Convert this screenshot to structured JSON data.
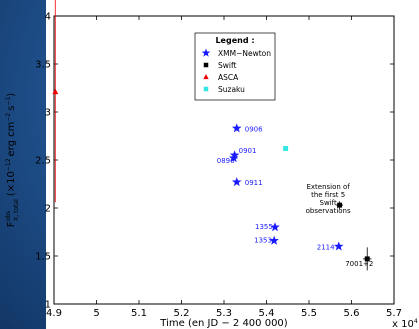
{
  "chart_data": {
    "type": "scatter",
    "xlabel": "Time (en JD − 2 400 000)",
    "x_multiplier_label": "x 10",
    "x_multiplier_exp": "4",
    "ylabel_main": "F",
    "ylabel_sup": "obs",
    "ylabel_sub": "X, total",
    "ylabel_rest": "(×10",
    "ylabel_exp": "−12",
    "ylabel_units": "erg cm",
    "ylabel_units_exp": "−2",
    "ylabel_units2": "s",
    "ylabel_units2_exp": "−1",
    "ylabel_close": ")",
    "xlim": [
      4.9,
      5.7
    ],
    "ylim": [
      1,
      4
    ],
    "xticks": [
      "4.9",
      "5",
      "5.1",
      "5.2",
      "5.3",
      "5.4",
      "5.5",
      "5.6",
      "5.7"
    ],
    "yticks": [
      "1",
      "1.5",
      "2",
      "2.5",
      "3",
      "3.5",
      "4"
    ],
    "legend": {
      "title": "Legend :",
      "placement": "top-center",
      "entries": [
        {
          "name": "XMM−Newton",
          "marker": "star",
          "color": "#1a1aff"
        },
        {
          "name": "Swift",
          "marker": "square",
          "color": "#000000"
        },
        {
          "name": "ASCA",
          "marker": "triangle",
          "color": "#ee0000"
        },
        {
          "name": "Suzaku",
          "marker": "square",
          "color": "#33e6e6"
        }
      ]
    },
    "series": [
      {
        "name": "XMM−Newton",
        "marker": "star",
        "color": "#1a1aff",
        "points": [
          {
            "x": 5.33,
            "y": 2.83,
            "label": "0906"
          },
          {
            "x": 5.325,
            "y": 2.55,
            "label": "0901"
          },
          {
            "x": 5.323,
            "y": 2.52,
            "label": "0896"
          },
          {
            "x": 5.33,
            "y": 2.27,
            "label": "0911"
          },
          {
            "x": 5.42,
            "y": 1.8,
            "label": "1355"
          },
          {
            "x": 5.418,
            "y": 1.66,
            "label": "1353"
          },
          {
            "x": 5.57,
            "y": 1.6,
            "label": "2114"
          }
        ]
      },
      {
        "name": "Swift",
        "marker": "square",
        "color": "#000000",
        "points": [
          {
            "x": 5.572,
            "y": 2.03,
            "xerr": 0.008,
            "yerr": 0.04
          },
          {
            "x": 5.637,
            "y": 1.47,
            "xerr": 0.01,
            "yerr": 0.12,
            "label": "7001+2"
          }
        ]
      },
      {
        "name": "ASCA",
        "marker": "triangle",
        "color": "#ee0000",
        "points": [
          {
            "x": 4.903,
            "y": 3.21,
            "yerr": 1.15
          }
        ]
      },
      {
        "name": "Suzaku",
        "marker": "square",
        "color": "#33e6e6",
        "points": [
          {
            "x": 5.445,
            "y": 2.62
          }
        ]
      }
    ],
    "annotations": [
      {
        "lines": [
          "Extension of",
          "the first 5",
          "Swift",
          "observations"
        ],
        "x": 5.545,
        "y": 2.2
      }
    ]
  }
}
